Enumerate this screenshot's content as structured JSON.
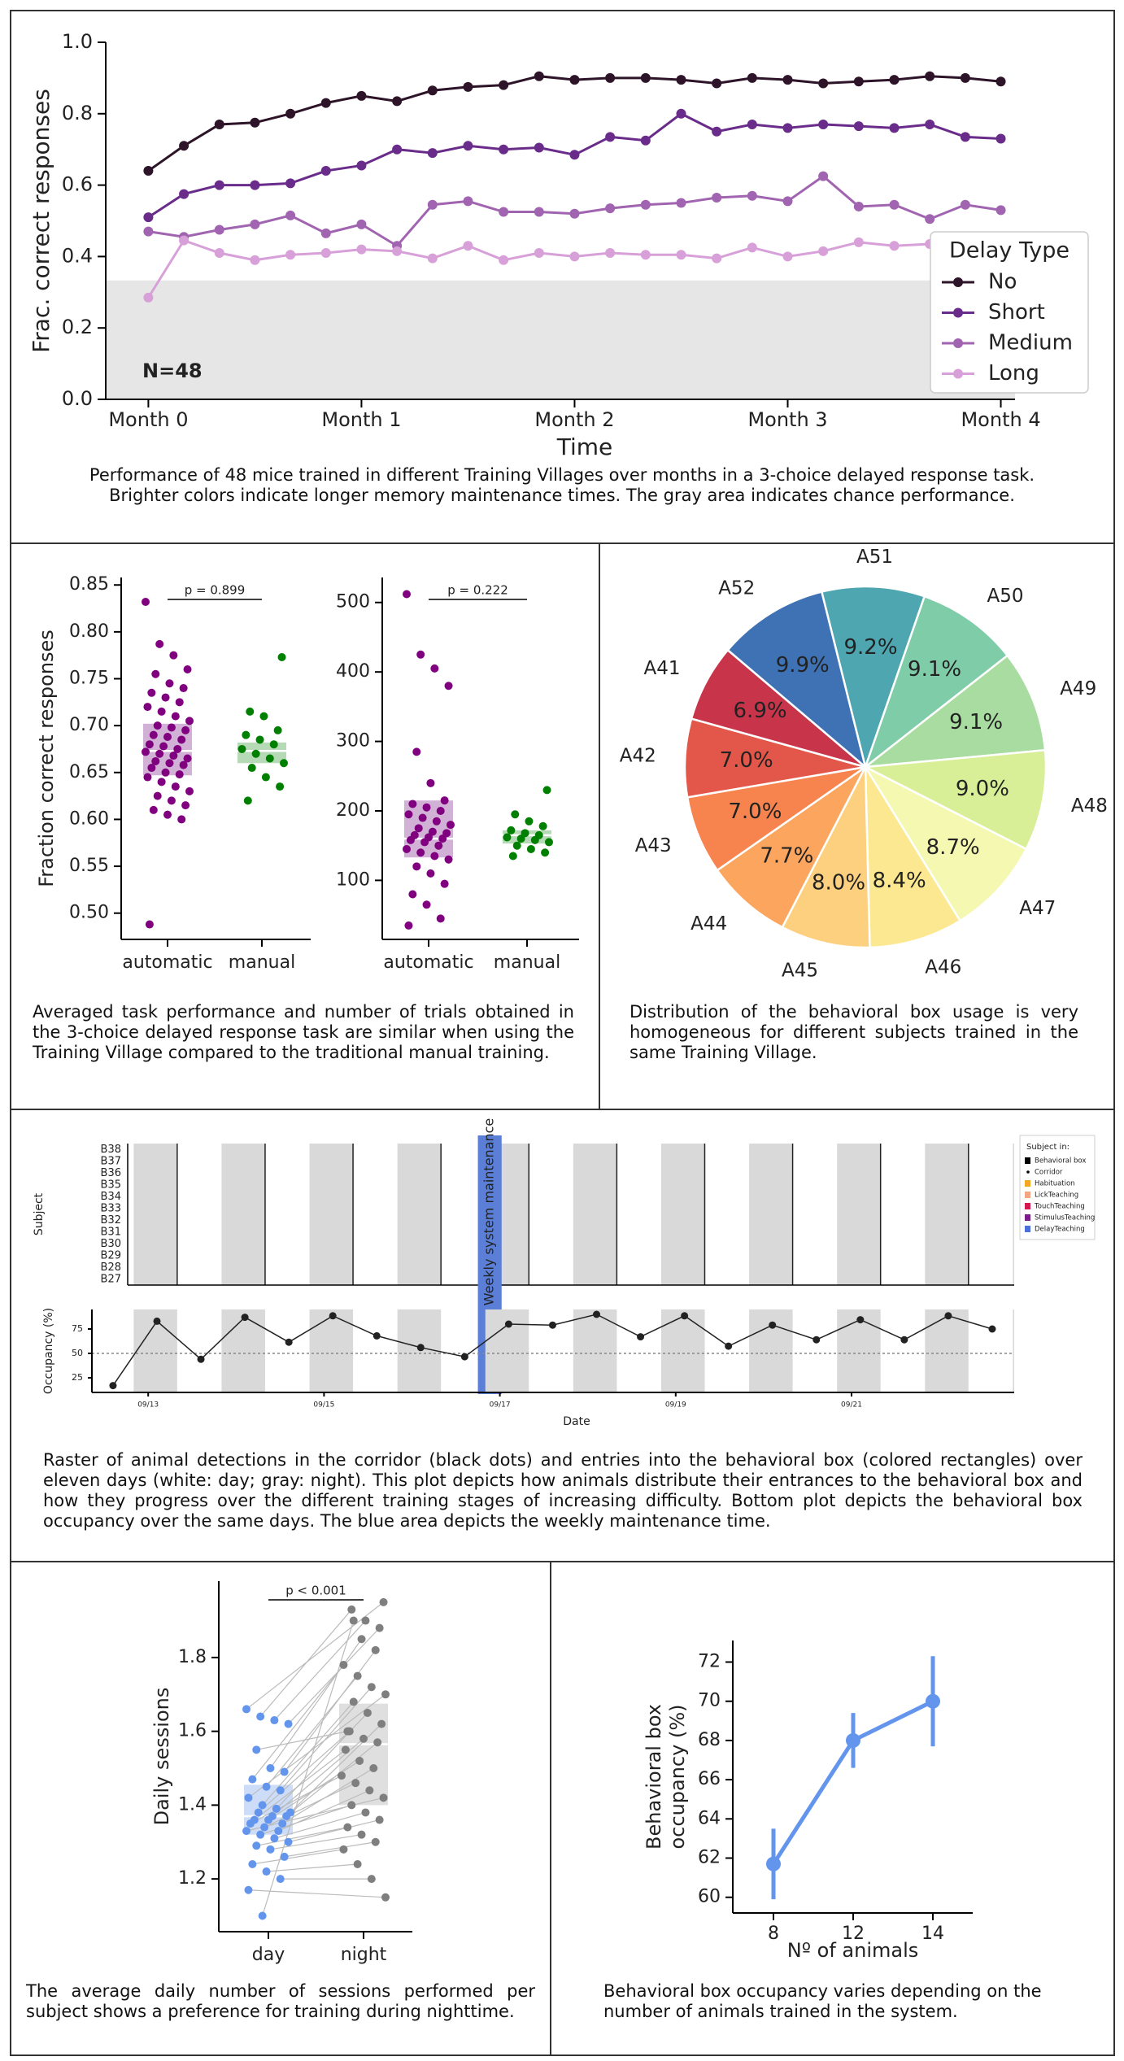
{
  "chart_data": [
    {
      "type": "line",
      "ylabel": "Frac. correct responses",
      "xlabel": "Time",
      "annotation": "N=48",
      "legend_title": "Delay Type",
      "legend": "upper right",
      "shaded_range": [
        0,
        0.333
      ],
      "shaded_color": "#e6e6e6",
      "x": [
        0,
        1,
        2,
        3,
        4,
        5,
        6,
        7,
        8,
        9,
        10,
        11,
        12,
        13,
        14,
        15,
        16,
        17,
        18,
        19,
        20,
        21,
        22,
        23,
        24
      ],
      "xlim": [
        -1.2,
        24.4
      ],
      "xticks": [
        {
          "value": 0,
          "label": "Month 0"
        },
        {
          "value": 6,
          "label": "Month 1"
        },
        {
          "value": 12,
          "label": "Month 2"
        },
        {
          "value": 18,
          "label": "Month 3"
        },
        {
          "value": 24,
          "label": "Month 4"
        }
      ],
      "ylim": [
        0,
        1
      ],
      "yticks": [
        {
          "value": 0,
          "label": "0.0"
        },
        0.2,
        0.4,
        0.6,
        0.8,
        {
          "value": 1,
          "label": "1.0"
        }
      ],
      "series": [
        {
          "name": "No",
          "color": "#2d1428",
          "values": [
            0.64,
            0.71,
            0.77,
            0.775,
            0.8,
            0.83,
            0.85,
            0.835,
            0.865,
            0.875,
            0.88,
            0.905,
            0.895,
            0.9,
            0.9,
            0.895,
            0.885,
            0.9,
            0.895,
            0.885,
            0.89,
            0.895,
            0.905,
            0.9,
            0.89
          ]
        },
        {
          "name": "Short",
          "color": "#6a2c8a",
          "values": [
            0.51,
            0.575,
            0.6,
            0.6,
            0.605,
            0.64,
            0.655,
            0.7,
            0.69,
            0.71,
            0.7,
            0.705,
            0.685,
            0.735,
            0.725,
            0.8,
            0.75,
            0.77,
            0.76,
            0.77,
            0.765,
            0.76,
            0.77,
            0.735,
            0.73
          ]
        },
        {
          "name": "Medium",
          "color": "#a064b0",
          "values": [
            0.47,
            0.455,
            0.475,
            0.49,
            0.515,
            0.465,
            0.49,
            0.43,
            0.545,
            0.555,
            0.525,
            0.525,
            0.52,
            0.535,
            0.545,
            0.55,
            0.565,
            0.57,
            0.555,
            0.625,
            0.54,
            0.545,
            0.505,
            0.545,
            0.53
          ]
        },
        {
          "name": "Long",
          "color": "#d8a0d8",
          "values": [
            0.285,
            0.445,
            0.41,
            0.39,
            0.405,
            0.41,
            0.42,
            0.415,
            0.395,
            0.43,
            0.39,
            0.41,
            0.4,
            0.41,
            0.405,
            0.405,
            0.395,
            0.425,
            0.4,
            0.415,
            0.44,
            0.43,
            0.435,
            0.43,
            0.43
          ]
        }
      ],
      "caption": "Performance of 48 mice trained in different Training Villages over months in a 3-choice delayed response task. Brighter colors indicate longer memory maintenance times. The gray area indicates chance performance."
    },
    {
      "type": "strip",
      "ylabel": "Fraction correct responses",
      "annotation": "p = 0.899",
      "categories": [
        "automatic",
        "manual"
      ],
      "ylim": [
        0.472,
        0.858
      ],
      "yticks": [
        {
          "value": 0.5,
          "label": "0.50"
        },
        0.55,
        {
          "value": 0.6,
          "label": "0.60"
        },
        0.65,
        {
          "value": 0.7,
          "label": "0.70"
        },
        0.75,
        {
          "value": 0.8,
          "label": "0.80"
        },
        0.85
      ],
      "series": [
        {
          "color": "#800080",
          "box_color": "#c9a3cf",
          "box": [
            0.647,
            0.673,
            0.702
          ],
          "values": [
            0.832,
            0.787,
            0.775,
            0.76,
            0.755,
            0.745,
            0.74,
            0.735,
            0.73,
            0.725,
            0.72,
            0.715,
            0.71,
            0.705,
            0.7,
            0.698,
            0.695,
            0.69,
            0.688,
            0.685,
            0.68,
            0.678,
            0.675,
            0.672,
            0.67,
            0.668,
            0.665,
            0.662,
            0.66,
            0.658,
            0.655,
            0.65,
            0.648,
            0.645,
            0.64,
            0.635,
            0.63,
            0.625,
            0.62,
            0.615,
            0.61,
            0.605,
            0.6,
            0.488
          ]
        },
        {
          "color": "#008000",
          "box_color": "#a8d3a8",
          "box": [
            0.66,
            0.673,
            0.682
          ],
          "values": [
            0.773,
            0.715,
            0.71,
            0.695,
            0.69,
            0.685,
            0.68,
            0.675,
            0.67,
            0.665,
            0.66,
            0.655,
            0.645,
            0.635,
            0.62
          ]
        }
      ],
      "caption": "Averaged task performance and number of trials obtained in the 3-choice delayed response task are similar when using the Training Village compared to the traditional manual training."
    },
    {
      "type": "strip",
      "annotation": "p = 0.222",
      "categories": [
        "automatic",
        "manual"
      ],
      "ylim": [
        15,
        536
      ],
      "yticks": [
        100,
        200,
        300,
        400,
        500
      ],
      "series": [
        {
          "color": "#800080",
          "box_color": "#c9a3cf",
          "box": [
            133,
            160,
            215
          ],
          "values": [
            512,
            425,
            405,
            380,
            285,
            240,
            215,
            210,
            205,
            200,
            195,
            190,
            185,
            180,
            175,
            170,
            168,
            165,
            162,
            160,
            158,
            155,
            150,
            145,
            140,
            135,
            130,
            120,
            110,
            95,
            80,
            65,
            45,
            35
          ]
        },
        {
          "color": "#008000",
          "box_color": "#a8d3a8",
          "box": [
            153,
            165,
            172
          ],
          "values": [
            230,
            195,
            185,
            178,
            172,
            168,
            165,
            162,
            160,
            158,
            155,
            150,
            145,
            140,
            135
          ]
        }
      ]
    },
    {
      "type": "pie",
      "start_angle": -104,
      "categories": [
        "A51",
        "A50",
        "A49",
        "A48",
        "A47",
        "A46",
        "A45",
        "A44",
        "A43",
        "A42",
        "A41",
        "A52"
      ],
      "values": [
        9.2,
        9.1,
        9.1,
        9.0,
        8.7,
        8.4,
        8.0,
        7.7,
        7.0,
        7.0,
        6.9,
        9.9
      ],
      "value_labels": [
        "9.2%",
        "9.1%",
        "9.1%",
        "9.0%",
        "8.7%",
        "8.4%",
        "8.0%",
        "7.7%",
        "7.0%",
        "7.0%",
        "6.9%",
        "9.9%"
      ],
      "colors": [
        "#4ea6b0",
        "#7fcca8",
        "#a8dca0",
        "#d8ef98",
        "#f4f8b0",
        "#fbe890",
        "#fdd080",
        "#fca55e",
        "#f7844e",
        "#e3574a",
        "#c8344a",
        "#3e72b4"
      ],
      "caption": "Distribution of the behavioral box usage is very homogeneous for different  subjects trained in the same Training Village."
    },
    {
      "type": "raster",
      "ylabel": "Subject",
      "annotation": "Weekly  system  maintenance",
      "annotation_color": "#5b7fd6",
      "subjects": [
        "B38",
        "B37",
        "B36",
        "B35",
        "B34",
        "B33",
        "B32",
        "B31",
        "B30",
        "B29",
        "B28",
        "B27"
      ],
      "legend_title": "Subject in:",
      "legend_items": [
        {
          "name": "Behavioral box",
          "color": "#000000",
          "marker": "square"
        },
        {
          "name": "Corridor",
          "color": "#000000",
          "marker": "dot"
        },
        {
          "name": "Habituation",
          "color": "#f5a623",
          "marker": "square"
        },
        {
          "name": "LickTeaching",
          "color": "#f4a582",
          "marker": "square"
        },
        {
          "name": "TouchTeaching",
          "color": "#d6184e",
          "marker": "square"
        },
        {
          "name": "StimulusTeaching",
          "color": "#7b1e8c",
          "marker": "square"
        },
        {
          "name": "DelayTeaching",
          "color": "#4b6fdb",
          "marker": "square"
        }
      ],
      "caption": "Raster of animal detections in the corridor (black dots) and entries into the behavioral box (colored rectangles) over eleven days (white: day; gray: night). This plot depicts how animals distribute their entrances to the behavioral box and how they progress over the different training stages of increasing difficulty. Bottom plot depicts the behavioral box occupancy over the same days. The blue area depicts the weekly maintenance time."
    },
    {
      "type": "line",
      "ylabel": "Occupancy (%)",
      "xlabel": "Date",
      "reference_line": 50,
      "x": [
        12.6,
        13.1,
        13.6,
        14.1,
        14.6,
        15.1,
        15.6,
        16.1,
        16.6,
        17.1,
        17.6,
        18.1,
        18.6,
        19.1,
        19.6,
        20.1,
        20.6,
        21.1,
        21.6,
        22.1,
        22.6
      ],
      "xlim": [
        12.36,
        22.85
      ],
      "xticks": [
        {
          "value": 13,
          "label": "09/13"
        },
        {
          "value": 15,
          "label": "09/15"
        },
        {
          "value": 17,
          "label": "09/17"
        },
        {
          "value": 19,
          "label": "09/19"
        },
        {
          "value": 21,
          "label": "09/21"
        }
      ],
      "ylim": [
        10,
        95
      ],
      "yticks": [
        25,
        50,
        75
      ],
      "series": [
        {
          "color": "#222222",
          "values": [
            17,
            83,
            44,
            87,
            61.5,
            88.5,
            68,
            56,
            46.6,
            80,
            79,
            90,
            67,
            88.5,
            57.4,
            79,
            64,
            84.5,
            64,
            88.5,
            75
          ]
        }
      ]
    },
    {
      "type": "strip",
      "paired": true,
      "ylabel": "Daily sessions",
      "annotation": "p < 0.001",
      "categories": [
        "day",
        "night"
      ],
      "ylim": [
        1.057,
        2.007
      ],
      "yticks": [
        1.2,
        1.4,
        1.6,
        1.8
      ],
      "series": [
        {
          "color": "#6495ed",
          "box_color": "#c6d7f6",
          "box": [
            1.32,
            1.37,
            1.455
          ],
          "values": [
            1.66,
            1.64,
            1.63,
            1.62,
            1.55,
            1.5,
            1.49,
            1.47,
            1.45,
            1.44,
            1.42,
            1.4,
            1.39,
            1.38,
            1.38,
            1.37,
            1.37,
            1.36,
            1.36,
            1.35,
            1.35,
            1.34,
            1.33,
            1.33,
            1.32,
            1.31,
            1.3,
            1.29,
            1.28,
            1.26,
            1.24,
            1.22,
            1.2,
            1.17,
            1.1
          ]
        },
        {
          "color": "#7f7f7f",
          "box_color": "#d9d9d9",
          "box": [
            1.4,
            1.565,
            1.675
          ],
          "values": [
            1.95,
            1.93,
            1.9,
            1.88,
            1.6,
            1.85,
            1.82,
            1.78,
            1.75,
            1.72,
            1.7,
            1.68,
            1.65,
            1.62,
            1.6,
            1.58,
            1.57,
            1.55,
            1.52,
            1.5,
            1.48,
            1.46,
            1.44,
            1.42,
            1.4,
            1.38,
            1.36,
            1.34,
            1.32,
            1.3,
            1.28,
            1.24,
            1.2,
            1.15,
            1.9
          ]
        }
      ],
      "caption": "The average daily number of sessions performed per subject shows a preference for training during nighttime."
    },
    {
      "type": "point",
      "ylabel": [
        "Behavioral box",
        "occupancy (%)"
      ],
      "xlabel": "Nº of animals",
      "color": "#6495ed",
      "categories": [
        "8",
        "12",
        "14"
      ],
      "values": [
        61.7,
        68.0,
        70.0
      ],
      "errors": [
        1.8,
        1.4,
        2.3
      ],
      "ylim": [
        59.2,
        73.1
      ],
      "yticks": [
        60,
        62,
        64,
        66,
        68,
        70,
        72
      ],
      "caption": "Behavioral box occupancy varies depending on the number of animals trained in the system."
    }
  ]
}
